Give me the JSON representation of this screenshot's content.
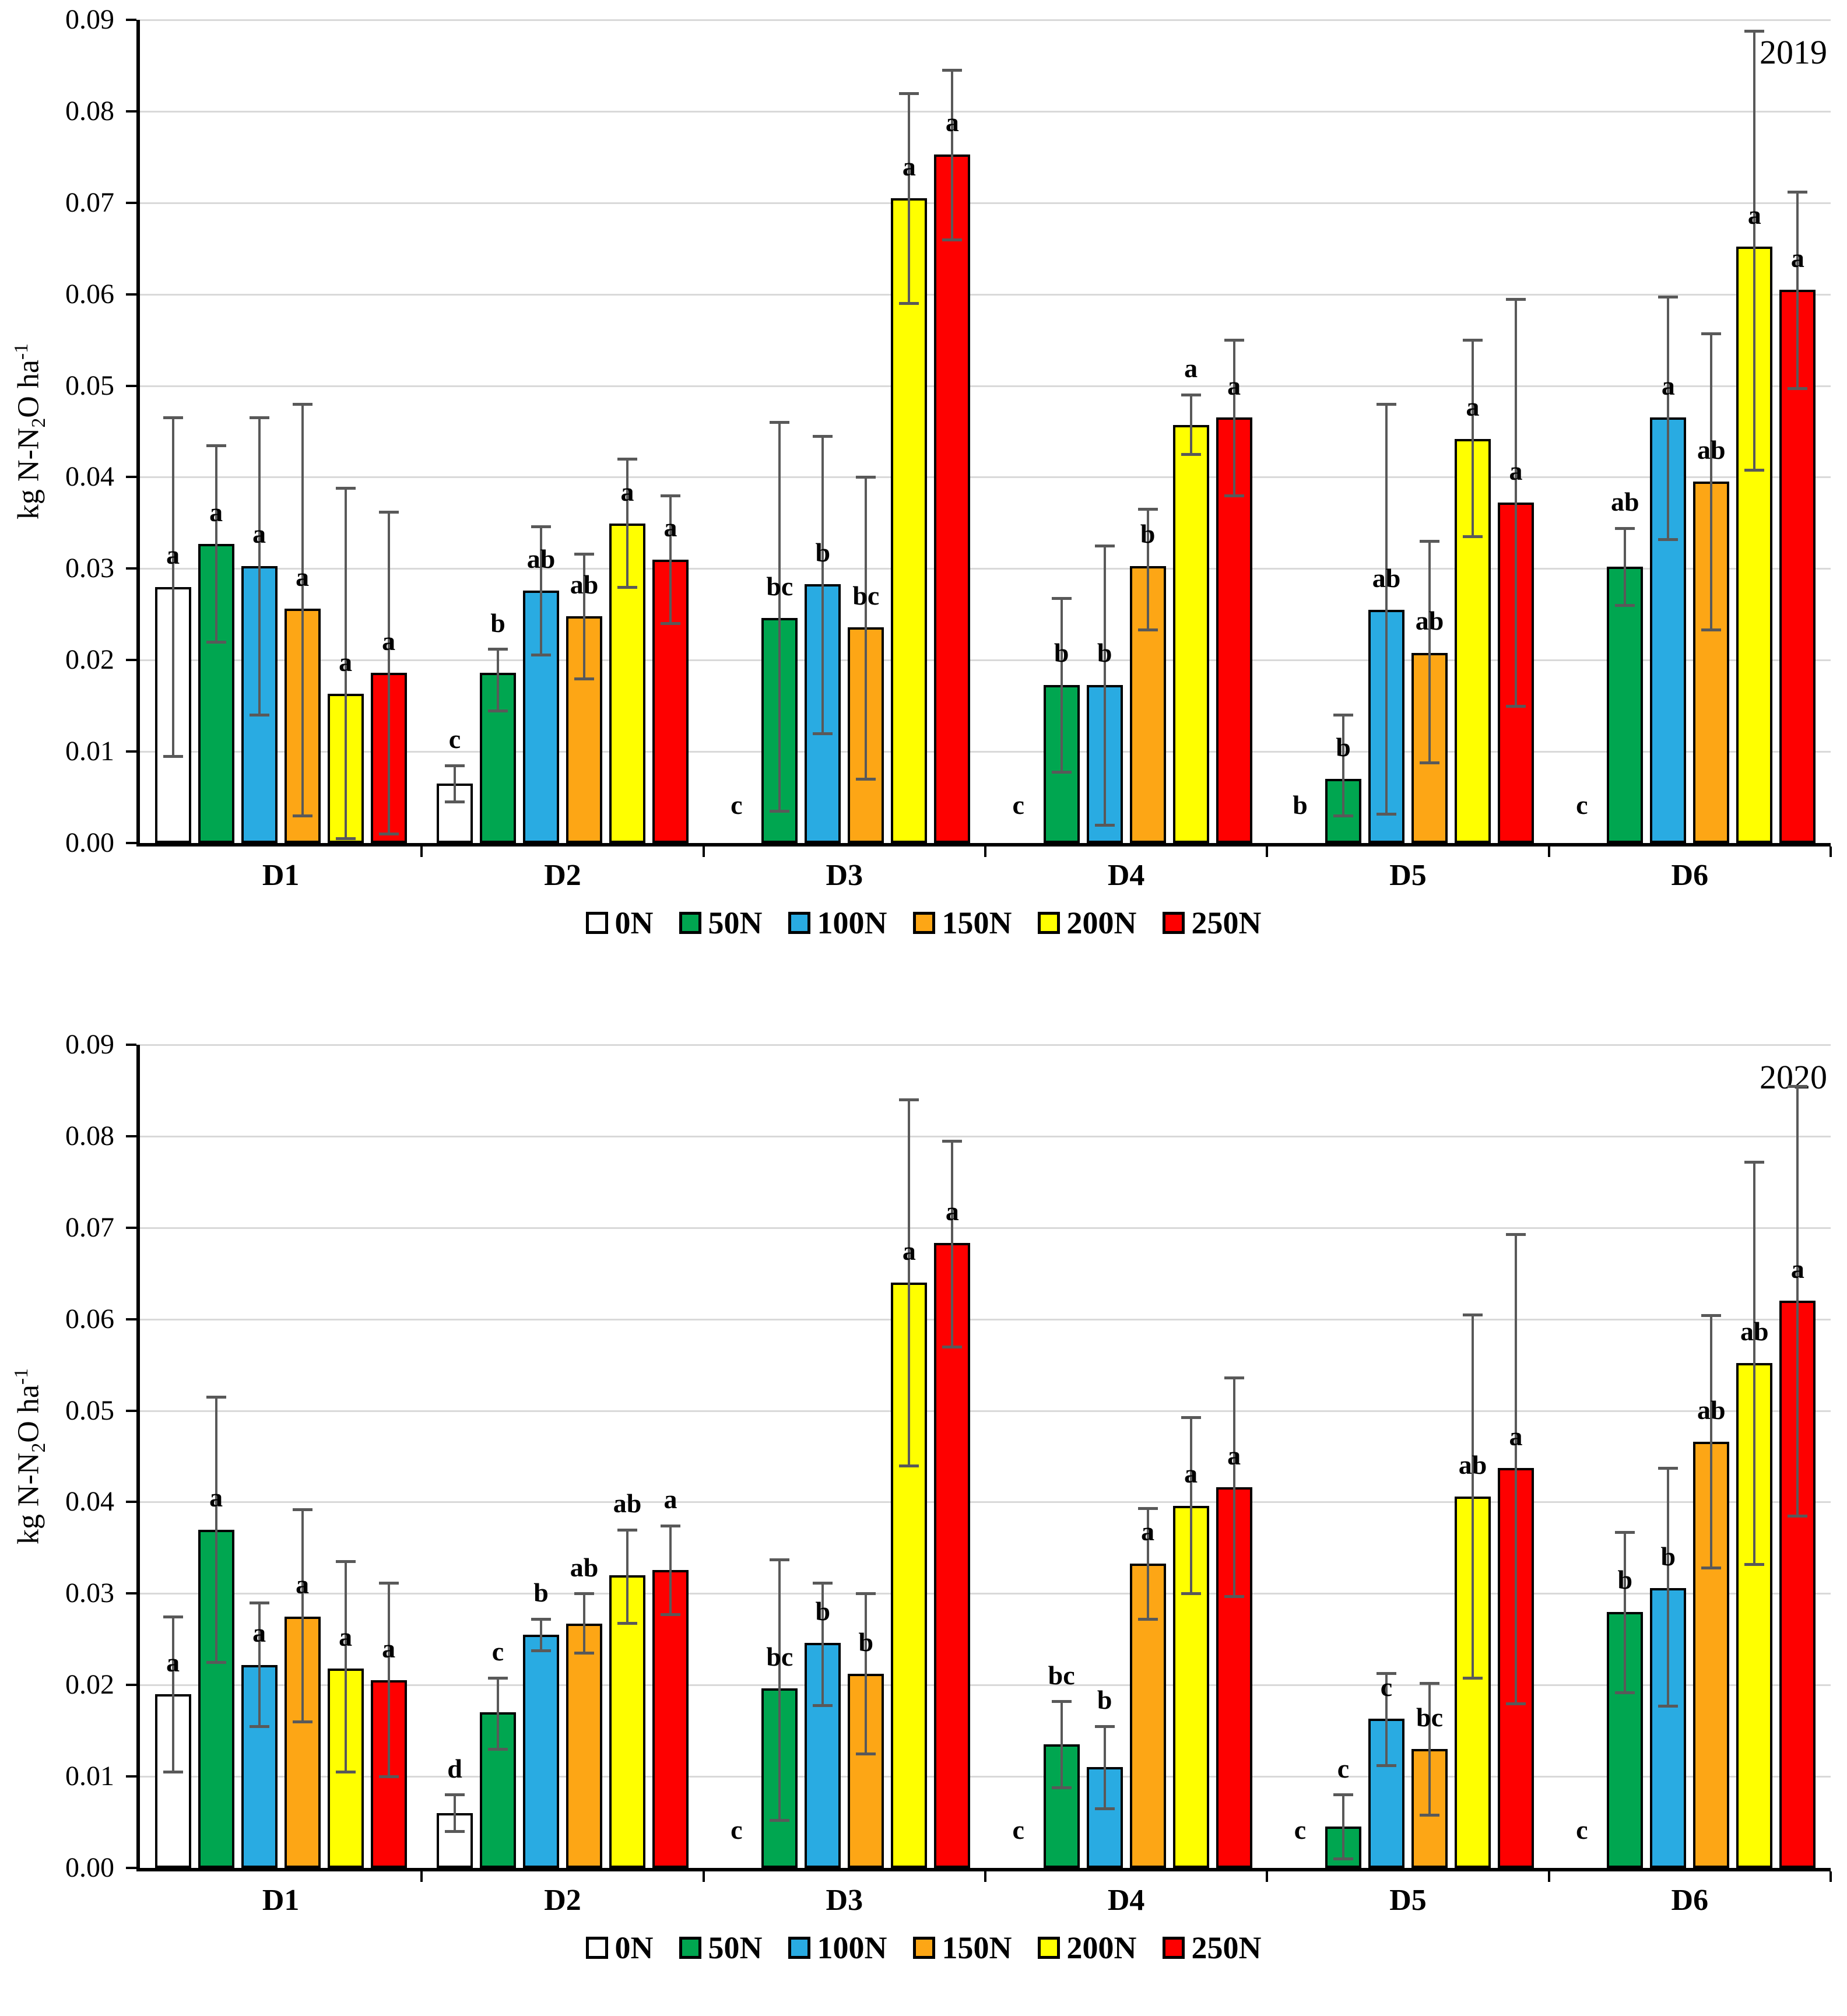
{
  "page": {
    "background": "#FFFFFF"
  },
  "y_axis": {
    "tick_labels": [
      "0.00",
      "0.01",
      "0.02",
      "0.03",
      "0.04",
      "0.05",
      "0.06",
      "0.07",
      "0.08",
      "0.09"
    ],
    "label_parts": {
      "pre": "kg N-N",
      "sub": "2",
      "mid": "O ha",
      "sup": "-1"
    }
  },
  "error_bar_color": "#595959",
  "chart_data": [
    {
      "type": "bar",
      "title": "2019",
      "ylim": [
        0,
        0.09
      ],
      "ytick_step": 0.01,
      "grid": true,
      "legend_position": "bottom",
      "categories": [
        "D1",
        "D2",
        "D3",
        "D4",
        "D5",
        "D6"
      ],
      "series": [
        {
          "name": "0N",
          "color": "#FFFFFF",
          "values": [
            0.028,
            0.0065,
            null,
            null,
            null,
            null
          ],
          "err_low": [
            0.0095,
            0.0045,
            null,
            null,
            null,
            null
          ],
          "err_high": [
            0.0465,
            0.0085,
            null,
            null,
            null,
            null
          ],
          "letters": [
            "a",
            "c",
            "c",
            "c",
            "b",
            "c"
          ]
        },
        {
          "name": "50N",
          "color": "#00A650",
          "values": [
            0.0327,
            0.0186,
            0.0246,
            0.0173,
            0.007,
            0.0302
          ],
          "err_low": [
            0.022,
            0.0145,
            0.0035,
            0.0078,
            0.003,
            0.026
          ],
          "err_high": [
            0.0435,
            0.0212,
            0.046,
            0.0268,
            0.014,
            0.0344
          ],
          "letters": [
            "a",
            "b",
            "bc",
            "b",
            "b",
            "ab"
          ]
        },
        {
          "name": "100N",
          "color": "#29ABE2",
          "values": [
            0.0303,
            0.0276,
            0.0283,
            0.0173,
            0.0255,
            0.0465
          ],
          "err_low": [
            0.014,
            0.0206,
            0.012,
            0.002,
            0.0032,
            0.0332
          ],
          "err_high": [
            0.0465,
            0.0346,
            0.0445,
            0.0325,
            0.048,
            0.0597
          ],
          "letters": [
            "a",
            "ab",
            "b",
            "b",
            "ab",
            "a"
          ]
        },
        {
          "name": "150N",
          "color": "#FDA615",
          "values": [
            0.0256,
            0.0248,
            0.0236,
            0.0303,
            0.0208,
            0.0395
          ],
          "err_low": [
            0.003,
            0.018,
            0.007,
            0.0233,
            0.0088,
            0.0233
          ],
          "err_high": [
            0.048,
            0.0316,
            0.04,
            0.0365,
            0.033,
            0.0557
          ],
          "letters": [
            "a",
            "ab",
            "bc",
            "b",
            "ab",
            "ab"
          ]
        },
        {
          "name": "200N",
          "color": "#FFFF00",
          "values": [
            0.0163,
            0.0349,
            0.0705,
            0.0457,
            0.0442,
            0.0652
          ],
          "err_low": [
            0.0005,
            0.028,
            0.059,
            0.0425,
            0.0335,
            0.0408
          ],
          "err_high": [
            0.0388,
            0.042,
            0.082,
            0.049,
            0.055,
            0.0888
          ],
          "letters": [
            "a",
            "a",
            "a",
            "a",
            "a",
            "a"
          ]
        },
        {
          "name": "250N",
          "color": "#FE0000",
          "values": [
            0.0186,
            0.031,
            0.0753,
            0.0465,
            0.0372,
            0.0605
          ],
          "err_low": [
            0.001,
            0.024,
            0.066,
            0.038,
            0.015,
            0.0497
          ],
          "err_high": [
            0.0362,
            0.038,
            0.0845,
            0.055,
            0.0595,
            0.0712
          ],
          "letters": [
            "a",
            "a",
            "a",
            "a",
            "a",
            "a"
          ]
        }
      ]
    },
    {
      "type": "bar",
      "title": "2020",
      "ylim": [
        0,
        0.09
      ],
      "ytick_step": 0.01,
      "grid": true,
      "legend_position": "bottom",
      "categories": [
        "D1",
        "D2",
        "D3",
        "D4",
        "D5",
        "D6"
      ],
      "series": [
        {
          "name": "0N",
          "color": "#FFFFFF",
          "values": [
            0.019,
            0.006,
            null,
            null,
            null,
            null
          ],
          "err_low": [
            0.0105,
            0.004,
            null,
            null,
            null,
            null
          ],
          "err_high": [
            0.0275,
            0.008,
            null,
            null,
            null,
            null
          ],
          "letters": [
            "a",
            "d",
            "c",
            "c",
            "c",
            "c"
          ]
        },
        {
          "name": "50N",
          "color": "#00A650",
          "values": [
            0.037,
            0.017,
            0.0196,
            0.0135,
            0.0045,
            0.028
          ],
          "err_low": [
            0.0225,
            0.013,
            0.0052,
            0.0088,
            0.001,
            0.0192
          ],
          "err_high": [
            0.0515,
            0.0208,
            0.0337,
            0.0182,
            0.008,
            0.0367
          ],
          "letters": [
            "a",
            "c",
            "bc",
            "bc",
            "c",
            "b"
          ]
        },
        {
          "name": "100N",
          "color": "#29ABE2",
          "values": [
            0.0222,
            0.0255,
            0.0246,
            0.011,
            0.0163,
            0.0306
          ],
          "err_low": [
            0.0155,
            0.0238,
            0.0178,
            0.0065,
            0.0112,
            0.0177
          ],
          "err_high": [
            0.029,
            0.0272,
            0.0312,
            0.0155,
            0.0213,
            0.0437
          ],
          "letters": [
            "a",
            "b",
            "b",
            "b",
            "c",
            "b"
          ]
        },
        {
          "name": "150N",
          "color": "#FDA615",
          "values": [
            0.0275,
            0.0267,
            0.0212,
            0.0333,
            0.013,
            0.0466
          ],
          "err_low": [
            0.016,
            0.0235,
            0.0125,
            0.0272,
            0.0058,
            0.0328
          ],
          "err_high": [
            0.0392,
            0.03,
            0.03,
            0.0393,
            0.0202,
            0.0604
          ],
          "letters": [
            "a",
            "ab",
            "b",
            "a",
            "bc",
            "ab"
          ]
        },
        {
          "name": "200N",
          "color": "#FFFF00",
          "values": [
            0.0218,
            0.032,
            0.064,
            0.0396,
            0.0406,
            0.0552
          ],
          "err_low": [
            0.0105,
            0.0268,
            0.044,
            0.03,
            0.0208,
            0.0332
          ],
          "err_high": [
            0.0335,
            0.037,
            0.084,
            0.0493,
            0.0605,
            0.0772
          ],
          "letters": [
            "a",
            "ab",
            "a",
            "a",
            "ab",
            "ab"
          ]
        },
        {
          "name": "250N",
          "color": "#FE0000",
          "values": [
            0.0205,
            0.0326,
            0.0683,
            0.0416,
            0.0437,
            0.062
          ],
          "err_low": [
            0.01,
            0.0277,
            0.057,
            0.0297,
            0.018,
            0.0385
          ],
          "err_high": [
            0.0312,
            0.0374,
            0.0795,
            0.0536,
            0.0693,
            0.0855
          ],
          "letters": [
            "a",
            "a",
            "a",
            "a",
            "a",
            "a"
          ]
        }
      ]
    }
  ]
}
